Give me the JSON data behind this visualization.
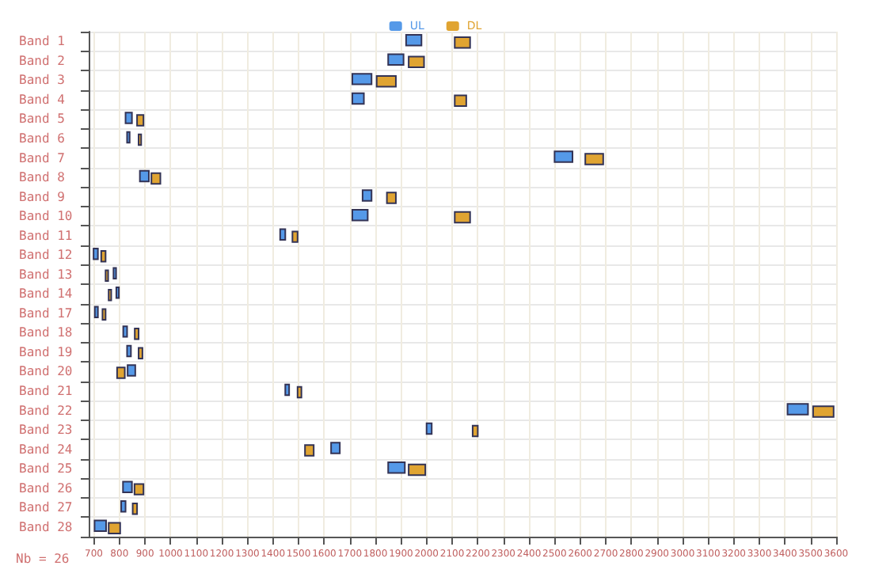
{
  "chart_data": {
    "type": "bar",
    "orientation": "horizontal",
    "categories": [
      "Band 1",
      "Band 2",
      "Band 3",
      "Band 4",
      "Band 5",
      "Band 6",
      "Band 7",
      "Band 8",
      "Band 9",
      "Band 10",
      "Band 11",
      "Band 12",
      "Band 13",
      "Band 14",
      "Band 17",
      "Band 18",
      "Band 19",
      "Band 20",
      "Band 21",
      "Band 22",
      "Band 23",
      "Band 24",
      "Band 25",
      "Band 26",
      "Band 27",
      "Band 28"
    ],
    "series": [
      {
        "name": "UL",
        "color": "#5599e8",
        "base": [
          1920,
          1850,
          1710,
          1710,
          824,
          830,
          2500,
          880,
          1750,
          1710,
          1428,
          699,
          777,
          788,
          704,
          815,
          830,
          832,
          1448,
          3410,
          2000,
          1627,
          1850,
          814,
          807,
          703
        ],
        "values": [
          60,
          60,
          75,
          45,
          25,
          10,
          70,
          35,
          35,
          60,
          20,
          17,
          10,
          10,
          12,
          15,
          15,
          30,
          15,
          80,
          20,
          34,
          65,
          35,
          17,
          45
        ]
      },
      {
        "name": "DL",
        "color": "#e0a432",
        "base": [
          2110,
          1930,
          1805,
          2110,
          869,
          875,
          2620,
          925,
          1845,
          2110,
          1476,
          729,
          746,
          758,
          734,
          860,
          875,
          791,
          1496,
          3510,
          2180,
          1525,
          1930,
          859,
          852,
          758
        ],
        "values": [
          60,
          60,
          75,
          45,
          25,
          10,
          70,
          35,
          35,
          60,
          20,
          17,
          10,
          10,
          12,
          15,
          15,
          30,
          15,
          80,
          20,
          34,
          65,
          35,
          17,
          45
        ]
      }
    ],
    "xlim": [
      680,
      3600
    ],
    "xticks": [
      700,
      800,
      900,
      1000,
      1100,
      1200,
      1300,
      1400,
      1500,
      1600,
      1700,
      1800,
      1900,
      2000,
      2100,
      2200,
      2300,
      2400,
      2500,
      2600,
      2700,
      2800,
      2900,
      3000,
      3100,
      3200,
      3300,
      3400,
      3500,
      3600
    ],
    "grid": true,
    "legend": "top",
    "annotations": [
      "Nb = 26"
    ]
  }
}
